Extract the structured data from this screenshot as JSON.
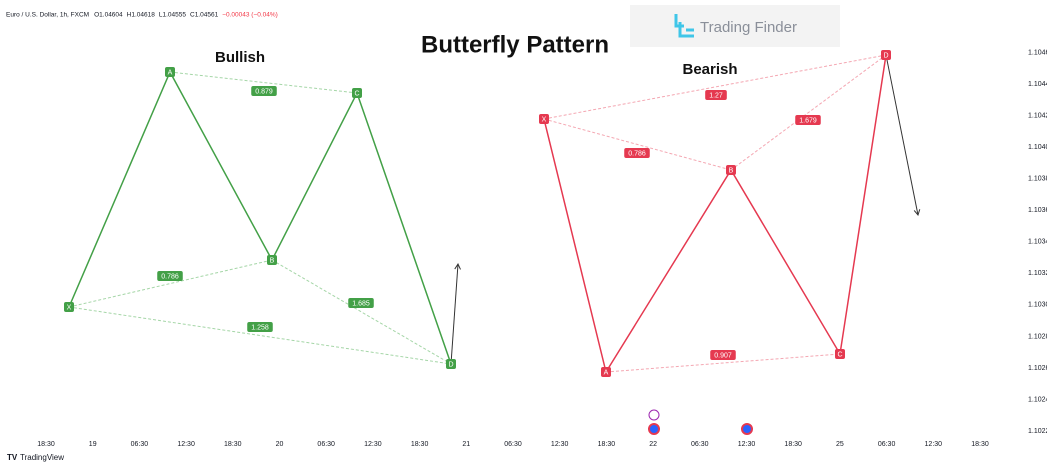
{
  "header": {
    "symbol": "Euro / U.S. Dollar, 1h, FXCM",
    "ohlc": [
      {
        "key": "O",
        "value": "1.04604"
      },
      {
        "key": "H",
        "value": "1.04618"
      },
      {
        "key": "L",
        "value": "1.04555"
      },
      {
        "key": "C",
        "value": "1.04561"
      }
    ],
    "change": "−0.00043 (−0.04%)"
  },
  "title": "Butterfly Pattern",
  "logo": "Trading Finder",
  "patterns": [
    {
      "name": "Bullish",
      "points": [
        "X",
        "A",
        "B",
        "C",
        "D"
      ],
      "ratios": [
        "0.879",
        "0.786",
        "1.685",
        "1.258"
      ]
    },
    {
      "name": "Bearish",
      "points": [
        "X",
        "A",
        "B",
        "C",
        "D"
      ],
      "ratios": [
        "1.27",
        "0.786",
        "1.679",
        "0.907"
      ]
    }
  ],
  "price_axis": [
    "1.1046",
    "1.1044",
    "1.1042",
    "1.1040",
    "1.1038",
    "1.1036",
    "1.1034",
    "1.1032",
    "1.1030",
    "1.1028",
    "1.1026",
    "1.1024",
    "1.1022"
  ],
  "time_axis": [
    "18:30",
    "19",
    "06:30",
    "12:30",
    "18:30",
    "20",
    "06:30",
    "12:30",
    "18:30",
    "21",
    "06:30",
    "12:30",
    "18:30",
    "22",
    "06:30",
    "12:30",
    "18:30",
    "25",
    "06:30",
    "12:30",
    "18:30"
  ],
  "footer": "TradingView"
}
